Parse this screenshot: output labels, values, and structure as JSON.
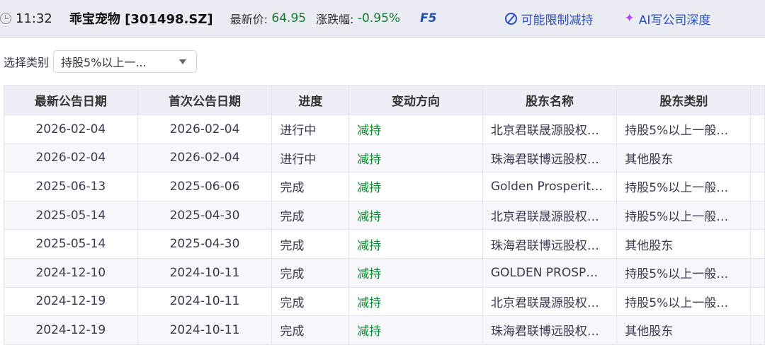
{
  "header": {
    "time": "11:32",
    "stock": "乖宝宠物 [301498.SZ]",
    "price_label": "最新价:",
    "price": "64.95",
    "change_label": "涨跌幅:",
    "change": "-0.95%",
    "f5": "F5",
    "limit_link": "可能限制减持",
    "ai_link": "AI写公司深度"
  },
  "filter": {
    "label": "选择类别",
    "value": "持股5%以上一..."
  },
  "table": {
    "columns": [
      "最新公告日期",
      "首次公告日期",
      "进度",
      "变动方向",
      "股东名称",
      "股东类别",
      ""
    ],
    "rows": [
      [
        "2026-02-04",
        "2026-02-04",
        "进行中",
        "减持",
        "北京君联晟源股权…",
        "持股5%以上一般…"
      ],
      [
        "2026-02-04",
        "2026-02-04",
        "进行中",
        "减持",
        "珠海君联博远股权…",
        "其他股东"
      ],
      [
        "2025-06-13",
        "2025-06-06",
        "完成",
        "减持",
        "Golden Prosperit…",
        "持股5%以上一般…"
      ],
      [
        "2025-05-14",
        "2025-04-30",
        "完成",
        "减持",
        "北京君联晟源股权…",
        "持股5%以上一般…"
      ],
      [
        "2025-05-14",
        "2025-04-30",
        "完成",
        "减持",
        "珠海君联博远股权…",
        "其他股东"
      ],
      [
        "2024-12-10",
        "2024-10-11",
        "完成",
        "减持",
        "GOLDEN PROSP…",
        "持股5%以上一般…"
      ],
      [
        "2024-12-19",
        "2024-10-11",
        "完成",
        "减持",
        "北京君联晟源股权…",
        "持股5%以上一般…"
      ],
      [
        "2024-12-19",
        "2024-10-11",
        "完成",
        "减持",
        "珠海君联博远股权…",
        "其他股东"
      ]
    ]
  },
  "colors": {
    "green": "#0a8a2e",
    "link": "#2a4fc0"
  }
}
